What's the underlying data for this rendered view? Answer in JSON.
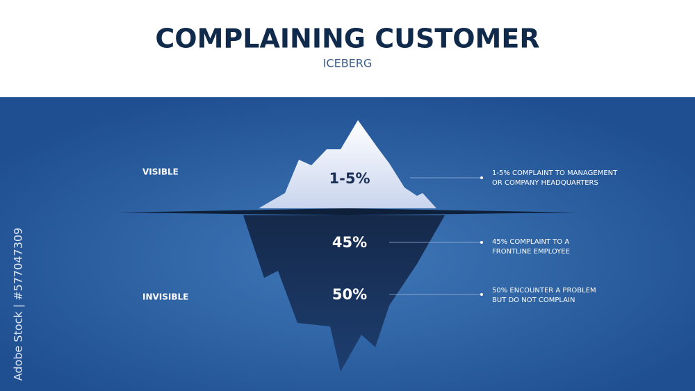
{
  "header": {
    "title": "COMPLAINING CUSTOMER",
    "subtitle": "ICEBERG"
  },
  "zones": [
    {
      "label": "VISIBLE"
    },
    {
      "label": "INVISIBLE"
    }
  ],
  "levels": [
    {
      "percent": "1-5%",
      "lines": [
        "1-5% COMPLAINT TO MANAGEMENT",
        "OR COMPANY HEADQUARTERS"
      ]
    },
    {
      "percent": "45%",
      "lines": [
        "45% COMPLAINT TO A",
        "FRONTLINE EMPLOYEE"
      ]
    },
    {
      "percent": "50%",
      "lines": [
        "50% ENCOUNTER A PROBLEM",
        "BUT DO NOT COMPLAIN"
      ]
    }
  ],
  "side_text": "Adobe Stock | #577047309"
}
